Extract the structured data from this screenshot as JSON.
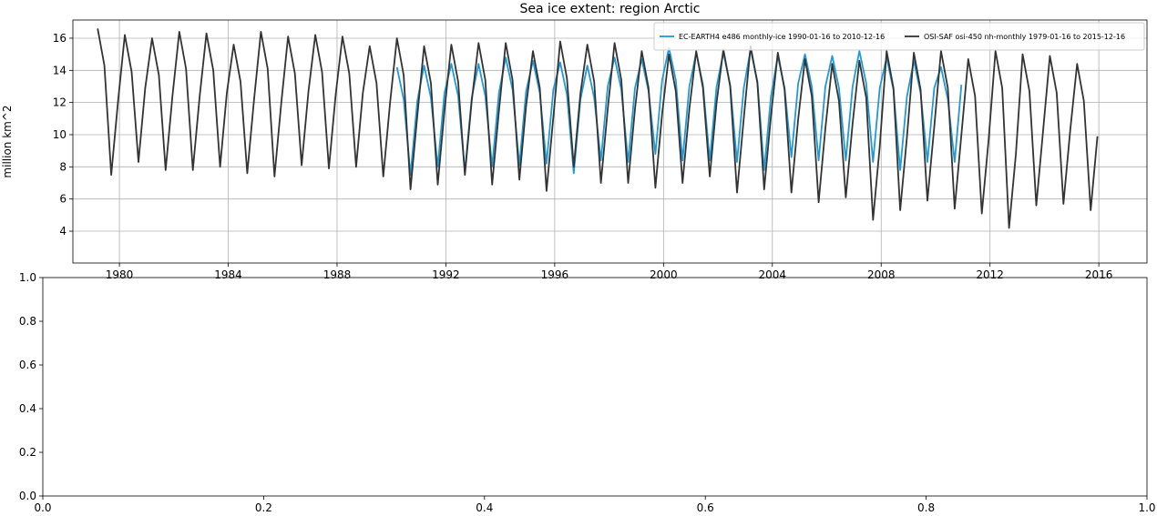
{
  "chart_data": [
    {
      "type": "line",
      "title": "Sea ice extent: region Arctic",
      "y_label": "million km^2",
      "xlim": [
        1978.29,
        2017.77
      ],
      "xticks": [
        1980,
        1984,
        1988,
        1992,
        1996,
        2000,
        2004,
        2008,
        2012,
        2016
      ],
      "ylim": [
        2.02,
        17.13
      ],
      "yticks": [
        4,
        6,
        8,
        10,
        12,
        14,
        16
      ],
      "grid": true,
      "legend": "upper right",
      "series": [
        {
          "name": "EC-EARTH4 e486 monthly-ice 1990-01-16 to 2010-12-16",
          "color": "#1f9ad6",
          "x": [
            1990.2,
            1990.45,
            1990.7,
            1990.95,
            1991.2,
            1991.45,
            1991.7,
            1991.95,
            1992.2,
            1992.45,
            1992.7,
            1992.95,
            1993.2,
            1993.45,
            1993.7,
            1993.95,
            1994.2,
            1994.45,
            1994.7,
            1994.95,
            1995.2,
            1995.45,
            1995.7,
            1995.95,
            1996.2,
            1996.45,
            1996.7,
            1996.95,
            1997.2,
            1997.45,
            1997.7,
            1997.95,
            1998.2,
            1998.45,
            1998.7,
            1998.95,
            1999.2,
            1999.45,
            1999.7,
            1999.95,
            2000.2,
            2000.45,
            2000.7,
            2000.95,
            2001.2,
            2001.45,
            2001.7,
            2001.95,
            2002.2,
            2002.45,
            2002.7,
            2002.95,
            2003.2,
            2003.45,
            2003.7,
            2003.95,
            2004.2,
            2004.45,
            2004.7,
            2004.95,
            2005.2,
            2005.45,
            2005.7,
            2005.95,
            2006.2,
            2006.45,
            2006.7,
            2006.95,
            2007.2,
            2007.45,
            2007.7,
            2007.95,
            2008.2,
            2008.45,
            2008.7,
            2008.95,
            2009.2,
            2009.45,
            2009.7,
            2009.95,
            2010.2,
            2010.45,
            2010.7,
            2010.95
          ],
          "values": [
            14.2,
            12.2,
            7.5,
            12.1,
            14.3,
            12.3,
            8.0,
            12.6,
            14.4,
            12.4,
            7.7,
            12.3,
            14.4,
            12.4,
            8.0,
            12.6,
            14.8,
            12.8,
            8.1,
            12.7,
            14.6,
            12.6,
            8.2,
            12.8,
            14.5,
            12.5,
            7.6,
            12.2,
            14.3,
            12.3,
            8.4,
            13.0,
            14.8,
            12.8,
            8.3,
            12.9,
            14.7,
            12.7,
            8.8,
            13.4,
            15.4,
            13.4,
            8.4,
            13.0,
            15.1,
            13.1,
            8.4,
            13.0,
            15.1,
            13.1,
            8.3,
            12.9,
            15.3,
            13.3,
            7.8,
            12.4,
            14.9,
            12.9,
            8.6,
            13.2,
            15.0,
            13.0,
            8.4,
            13.0,
            14.9,
            12.9,
            8.4,
            13.0,
            15.2,
            13.2,
            8.3,
            12.9,
            14.8,
            12.8,
            7.8,
            12.4,
            14.6,
            12.6,
            8.3,
            12.9,
            14.2,
            12.2,
            8.3,
            13.1
          ]
        },
        {
          "name": "OSI-SAF osi-450 nh-monthly 1979-01-16 to 2015-12-16",
          "color": "#333333",
          "x": [
            1979.2,
            1979.45,
            1979.7,
            1979.95,
            1980.2,
            1980.45,
            1980.7,
            1980.95,
            1981.2,
            1981.45,
            1981.7,
            1981.95,
            1982.2,
            1982.45,
            1982.7,
            1982.95,
            1983.2,
            1983.45,
            1983.7,
            1983.95,
            1984.2,
            1984.45,
            1984.7,
            1984.95,
            1985.2,
            1985.45,
            1985.7,
            1985.95,
            1986.2,
            1986.45,
            1986.7,
            1986.95,
            1987.2,
            1987.45,
            1987.7,
            1987.95,
            1988.2,
            1988.45,
            1988.7,
            1988.95,
            1989.2,
            1989.45,
            1989.7,
            1989.95,
            1990.2,
            1990.45,
            1990.7,
            1990.95,
            1991.2,
            1991.45,
            1991.7,
            1991.95,
            1992.2,
            1992.45,
            1992.7,
            1992.95,
            1993.2,
            1993.45,
            1993.7,
            1993.95,
            1994.2,
            1994.45,
            1994.7,
            1994.95,
            1995.2,
            1995.45,
            1995.7,
            1995.95,
            1996.2,
            1996.45,
            1996.7,
            1996.95,
            1997.2,
            1997.45,
            1997.7,
            1997.95,
            1998.2,
            1998.45,
            1998.7,
            1998.95,
            1999.2,
            1999.45,
            1999.7,
            1999.95,
            2000.2,
            2000.45,
            2000.7,
            2000.95,
            2001.2,
            2001.45,
            2001.7,
            2001.95,
            2002.2,
            2002.45,
            2002.7,
            2002.95,
            2003.2,
            2003.45,
            2003.7,
            2003.95,
            2004.2,
            2004.45,
            2004.7,
            2004.95,
            2005.2,
            2005.45,
            2005.7,
            2005.95,
            2006.2,
            2006.45,
            2006.7,
            2006.95,
            2007.2,
            2007.45,
            2007.7,
            2007.95,
            2008.2,
            2008.45,
            2008.7,
            2008.95,
            2009.2,
            2009.45,
            2009.7,
            2009.95,
            2010.2,
            2010.45,
            2010.7,
            2010.95,
            2011.2,
            2011.45,
            2011.7,
            2011.95,
            2012.2,
            2012.45,
            2012.7,
            2012.95,
            2013.2,
            2013.45,
            2013.7,
            2013.95,
            2014.2,
            2014.45,
            2014.7,
            2014.95,
            2015.2,
            2015.45,
            2015.7,
            2015.95
          ],
          "values": [
            16.6,
            14.3,
            7.5,
            12.1,
            16.2,
            13.9,
            8.3,
            12.9,
            16.0,
            13.7,
            7.8,
            12.4,
            16.4,
            14.1,
            7.8,
            12.4,
            16.3,
            14.0,
            8.0,
            12.6,
            15.6,
            13.3,
            7.6,
            12.2,
            16.4,
            14.1,
            7.4,
            12.0,
            16.1,
            13.8,
            8.1,
            12.7,
            16.2,
            13.9,
            7.9,
            12.5,
            16.1,
            13.8,
            8.0,
            12.6,
            15.5,
            13.2,
            7.4,
            12.0,
            16.0,
            13.7,
            6.6,
            11.2,
            15.5,
            13.2,
            6.9,
            11.5,
            15.6,
            13.3,
            7.5,
            12.1,
            15.7,
            13.4,
            6.9,
            11.5,
            15.7,
            13.4,
            7.2,
            11.8,
            15.2,
            12.9,
            6.5,
            11.1,
            15.8,
            13.5,
            8.0,
            12.6,
            15.6,
            13.3,
            7.0,
            11.6,
            15.7,
            13.4,
            7.0,
            11.6,
            15.2,
            12.9,
            6.7,
            11.3,
            15.0,
            12.7,
            7.0,
            11.6,
            15.2,
            12.9,
            7.4,
            12.0,
            15.3,
            13.0,
            6.4,
            11.0,
            15.5,
            13.2,
            6.6,
            11.2,
            15.1,
            12.8,
            6.4,
            11.0,
            14.7,
            12.4,
            5.8,
            10.4,
            14.4,
            12.1,
            6.1,
            10.7,
            14.6,
            12.3,
            4.7,
            9.3,
            15.2,
            12.9,
            5.3,
            9.9,
            15.1,
            12.8,
            5.9,
            10.5,
            15.2,
            12.9,
            5.4,
            10.0,
            14.7,
            12.4,
            5.1,
            9.7,
            15.2,
            12.9,
            4.2,
            8.8,
            15.0,
            12.7,
            5.6,
            10.2,
            14.9,
            12.6,
            5.7,
            10.3,
            14.4,
            12.1,
            5.3,
            9.9
          ]
        }
      ]
    },
    {
      "type": "line",
      "xlim": [
        0,
        1
      ],
      "ylim": [
        0,
        1
      ],
      "grid": false,
      "series": [],
      "xticks": [
        {
          "value": 0,
          "label": "0.0"
        },
        {
          "value": 0.2,
          "label": "0.2"
        },
        {
          "value": 0.4,
          "label": "0.4"
        },
        {
          "value": 0.6,
          "label": "0.6"
        },
        {
          "value": 0.8,
          "label": "0.8"
        },
        {
          "value": 1,
          "label": "1.0"
        }
      ],
      "yticks": [
        {
          "value": 0,
          "label": "0.0"
        },
        {
          "value": 0.2,
          "label": "0.2"
        },
        {
          "value": 0.4,
          "label": "0.4"
        },
        {
          "value": 0.6,
          "label": "0.6"
        },
        {
          "value": 0.8,
          "label": "0.8"
        },
        {
          "value": 1,
          "label": "1.0"
        }
      ]
    }
  ]
}
